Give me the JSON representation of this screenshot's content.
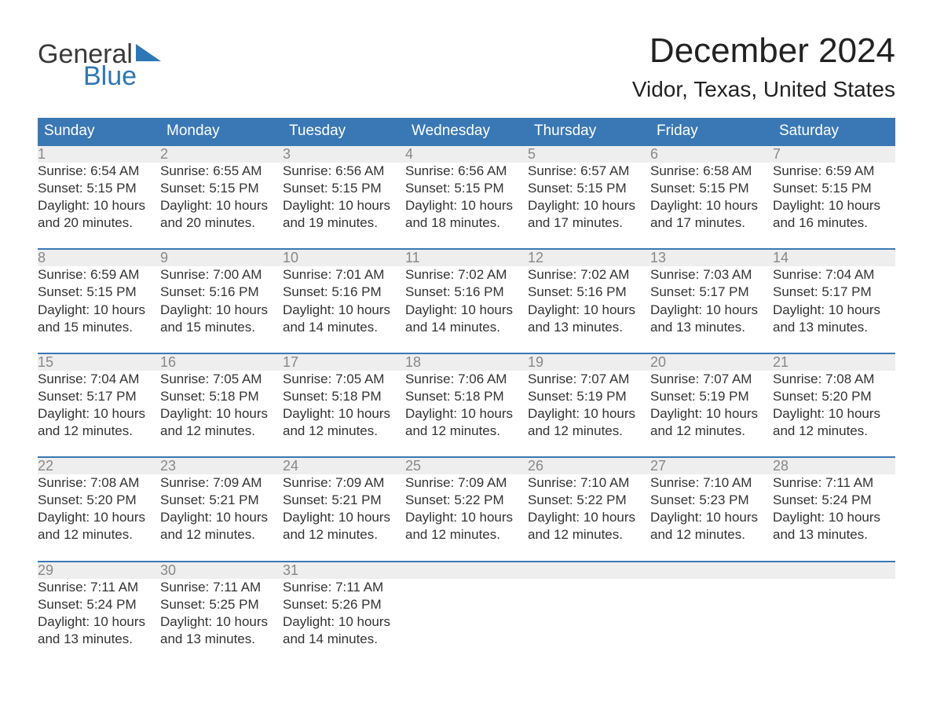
{
  "logo": {
    "text_general": "General",
    "text_blue": "Blue",
    "triangle_color": "#2e77b6"
  },
  "title": {
    "month": "December 2024",
    "location": "Vidor, Texas, United States"
  },
  "colors": {
    "header_bg": "#3a78b5",
    "header_text": "#ffffff",
    "day_number_bg": "#eeeeee",
    "day_number_text": "#888888",
    "row_border": "#3a78b5",
    "body_text": "#333333",
    "background": "#ffffff"
  },
  "fonts": {
    "month_title_size": 44,
    "location_size": 28,
    "header_size": 19,
    "cell_size": 17,
    "logo_size": 34
  },
  "day_headers": [
    "Sunday",
    "Monday",
    "Tuesday",
    "Wednesday",
    "Thursday",
    "Friday",
    "Saturday"
  ],
  "labels": {
    "sunrise": "Sunrise: ",
    "sunset": "Sunset: ",
    "daylight1_prefix": "Daylight: ",
    "daylight2_suffix": "."
  },
  "weeks": [
    [
      {
        "day": "1",
        "sunrise": "6:54 AM",
        "sunset": "5:15 PM",
        "daylight1": "10 hours",
        "daylight2": "and 20 minutes"
      },
      {
        "day": "2",
        "sunrise": "6:55 AM",
        "sunset": "5:15 PM",
        "daylight1": "10 hours",
        "daylight2": "and 20 minutes"
      },
      {
        "day": "3",
        "sunrise": "6:56 AM",
        "sunset": "5:15 PM",
        "daylight1": "10 hours",
        "daylight2": "and 19 minutes"
      },
      {
        "day": "4",
        "sunrise": "6:56 AM",
        "sunset": "5:15 PM",
        "daylight1": "10 hours",
        "daylight2": "and 18 minutes"
      },
      {
        "day": "5",
        "sunrise": "6:57 AM",
        "sunset": "5:15 PM",
        "daylight1": "10 hours",
        "daylight2": "and 17 minutes"
      },
      {
        "day": "6",
        "sunrise": "6:58 AM",
        "sunset": "5:15 PM",
        "daylight1": "10 hours",
        "daylight2": "and 17 minutes"
      },
      {
        "day": "7",
        "sunrise": "6:59 AM",
        "sunset": "5:15 PM",
        "daylight1": "10 hours",
        "daylight2": "and 16 minutes"
      }
    ],
    [
      {
        "day": "8",
        "sunrise": "6:59 AM",
        "sunset": "5:15 PM",
        "daylight1": "10 hours",
        "daylight2": "and 15 minutes"
      },
      {
        "day": "9",
        "sunrise": "7:00 AM",
        "sunset": "5:16 PM",
        "daylight1": "10 hours",
        "daylight2": "and 15 minutes"
      },
      {
        "day": "10",
        "sunrise": "7:01 AM",
        "sunset": "5:16 PM",
        "daylight1": "10 hours",
        "daylight2": "and 14 minutes"
      },
      {
        "day": "11",
        "sunrise": "7:02 AM",
        "sunset": "5:16 PM",
        "daylight1": "10 hours",
        "daylight2": "and 14 minutes"
      },
      {
        "day": "12",
        "sunrise": "7:02 AM",
        "sunset": "5:16 PM",
        "daylight1": "10 hours",
        "daylight2": "and 13 minutes"
      },
      {
        "day": "13",
        "sunrise": "7:03 AM",
        "sunset": "5:17 PM",
        "daylight1": "10 hours",
        "daylight2": "and 13 minutes"
      },
      {
        "day": "14",
        "sunrise": "7:04 AM",
        "sunset": "5:17 PM",
        "daylight1": "10 hours",
        "daylight2": "and 13 minutes"
      }
    ],
    [
      {
        "day": "15",
        "sunrise": "7:04 AM",
        "sunset": "5:17 PM",
        "daylight1": "10 hours",
        "daylight2": "and 12 minutes"
      },
      {
        "day": "16",
        "sunrise": "7:05 AM",
        "sunset": "5:18 PM",
        "daylight1": "10 hours",
        "daylight2": "and 12 minutes"
      },
      {
        "day": "17",
        "sunrise": "7:05 AM",
        "sunset": "5:18 PM",
        "daylight1": "10 hours",
        "daylight2": "and 12 minutes"
      },
      {
        "day": "18",
        "sunrise": "7:06 AM",
        "sunset": "5:18 PM",
        "daylight1": "10 hours",
        "daylight2": "and 12 minutes"
      },
      {
        "day": "19",
        "sunrise": "7:07 AM",
        "sunset": "5:19 PM",
        "daylight1": "10 hours",
        "daylight2": "and 12 minutes"
      },
      {
        "day": "20",
        "sunrise": "7:07 AM",
        "sunset": "5:19 PM",
        "daylight1": "10 hours",
        "daylight2": "and 12 minutes"
      },
      {
        "day": "21",
        "sunrise": "7:08 AM",
        "sunset": "5:20 PM",
        "daylight1": "10 hours",
        "daylight2": "and 12 minutes"
      }
    ],
    [
      {
        "day": "22",
        "sunrise": "7:08 AM",
        "sunset": "5:20 PM",
        "daylight1": "10 hours",
        "daylight2": "and 12 minutes"
      },
      {
        "day": "23",
        "sunrise": "7:09 AM",
        "sunset": "5:21 PM",
        "daylight1": "10 hours",
        "daylight2": "and 12 minutes"
      },
      {
        "day": "24",
        "sunrise": "7:09 AM",
        "sunset": "5:21 PM",
        "daylight1": "10 hours",
        "daylight2": "and 12 minutes"
      },
      {
        "day": "25",
        "sunrise": "7:09 AM",
        "sunset": "5:22 PM",
        "daylight1": "10 hours",
        "daylight2": "and 12 minutes"
      },
      {
        "day": "26",
        "sunrise": "7:10 AM",
        "sunset": "5:22 PM",
        "daylight1": "10 hours",
        "daylight2": "and 12 minutes"
      },
      {
        "day": "27",
        "sunrise": "7:10 AM",
        "sunset": "5:23 PM",
        "daylight1": "10 hours",
        "daylight2": "and 12 minutes"
      },
      {
        "day": "28",
        "sunrise": "7:11 AM",
        "sunset": "5:24 PM",
        "daylight1": "10 hours",
        "daylight2": "and 13 minutes"
      }
    ],
    [
      {
        "day": "29",
        "sunrise": "7:11 AM",
        "sunset": "5:24 PM",
        "daylight1": "10 hours",
        "daylight2": "and 13 minutes"
      },
      {
        "day": "30",
        "sunrise": "7:11 AM",
        "sunset": "5:25 PM",
        "daylight1": "10 hours",
        "daylight2": "and 13 minutes"
      },
      {
        "day": "31",
        "sunrise": "7:11 AM",
        "sunset": "5:26 PM",
        "daylight1": "10 hours",
        "daylight2": "and 14 minutes"
      },
      null,
      null,
      null,
      null
    ]
  ]
}
